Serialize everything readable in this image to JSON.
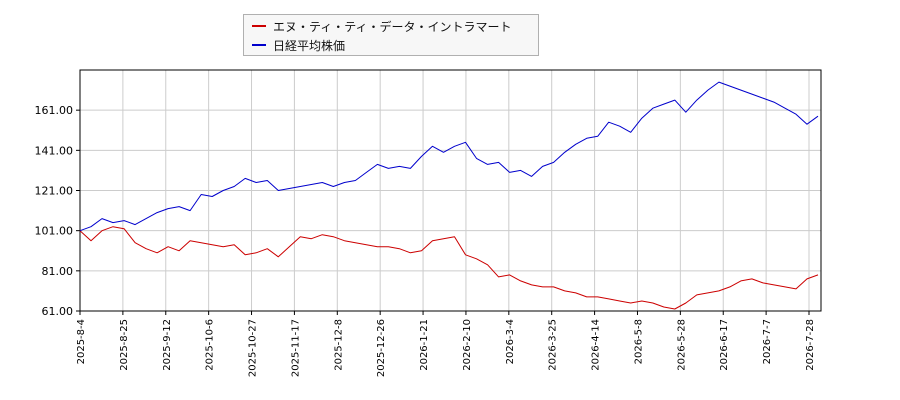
{
  "chart_data": {
    "type": "line",
    "title": "",
    "xlabel": "",
    "ylabel": "",
    "ylim": [
      61,
      181
    ],
    "yticks": [
      "61.00",
      "81.00",
      "101.00",
      "121.00",
      "141.00",
      "161.00"
    ],
    "xticks": [
      "2025-8-4",
      "2025-8-25",
      "2025-9-12",
      "2025-10-6",
      "2025-10-27",
      "2025-11-17",
      "2025-12-8",
      "2025-12-26",
      "2026-1-21",
      "2026-2-10",
      "2026-3-4",
      "2026-3-25",
      "2026-4-14",
      "2026-5-8",
      "2026-5-28",
      "2026-6-17",
      "2026-7-7",
      "2026-7-28"
    ],
    "grid": true,
    "legend_position": "top-center",
    "series": [
      {
        "name": "エヌ・ティ・ティ・データ・イントラマート",
        "color": "#cc0000",
        "values": [
          101,
          96,
          101,
          103,
          102,
          95,
          92,
          90,
          93,
          91,
          96,
          95,
          94,
          93,
          94,
          89,
          90,
          92,
          88,
          93,
          98,
          97,
          99,
          98,
          96,
          95,
          94,
          93,
          93,
          92,
          90,
          91,
          96,
          97,
          98,
          89,
          87,
          84,
          78,
          79,
          76,
          74,
          73,
          73,
          71,
          70,
          68,
          68,
          67,
          66,
          65,
          66,
          65,
          63,
          62,
          65,
          69,
          70,
          71,
          73,
          76,
          77,
          75,
          74,
          73,
          72,
          77,
          79
        ]
      },
      {
        "name": "日経平均株価",
        "color": "#0000cc",
        "values": [
          101,
          103,
          107,
          105,
          106,
          104,
          107,
          110,
          112,
          113,
          111,
          119,
          118,
          121,
          123,
          127,
          125,
          126,
          121,
          122,
          123,
          124,
          125,
          123,
          125,
          126,
          130,
          134,
          132,
          133,
          132,
          138,
          143,
          140,
          143,
          145,
          137,
          134,
          135,
          130,
          131,
          128,
          133,
          135,
          140,
          144,
          147,
          148,
          155,
          153,
          150,
          157,
          162,
          164,
          166,
          160,
          166,
          171,
          175,
          173,
          171,
          169,
          167,
          165,
          162,
          159,
          154,
          158
        ]
      }
    ]
  }
}
